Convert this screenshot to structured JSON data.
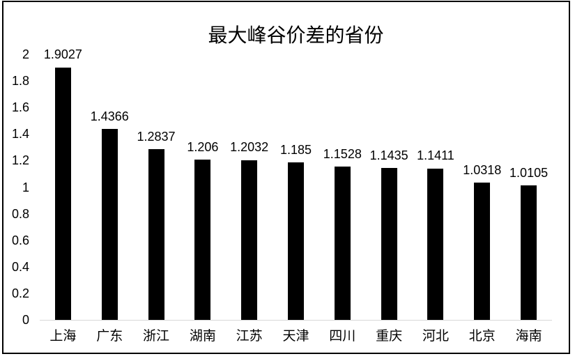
{
  "chart": {
    "title": "最大峰谷价差的省份"
  },
  "chart_data": {
    "type": "bar",
    "title": "最大峰谷价差的省份",
    "categories": [
      "上海",
      "广东",
      "浙江",
      "湖南",
      "江苏",
      "天津",
      "四川",
      "重庆",
      "河北",
      "北京",
      "海南"
    ],
    "values": [
      1.9027,
      1.4366,
      1.2837,
      1.206,
      1.2032,
      1.185,
      1.1528,
      1.1435,
      1.1411,
      1.0318,
      1.0105
    ],
    "value_labels": [
      "1.9027",
      "1.4366",
      "1.2837",
      "1.206",
      "1.2032",
      "1.185",
      "1.1528",
      "1.1435",
      "1.1411",
      "1.0318",
      "1.0105"
    ],
    "xlabel": "",
    "ylabel": "",
    "ylim": [
      0,
      2
    ],
    "ytick_interval": 0.2,
    "yticks": [
      "0",
      "0.2",
      "0.4",
      "0.6",
      "0.8",
      "1",
      "1.2",
      "1.4",
      "1.6",
      "1.8",
      "2"
    ],
    "bar_color": "#000000",
    "text_color": "#000000",
    "axis_line_color": "#d9d9d9",
    "grid": false,
    "legend": false
  }
}
